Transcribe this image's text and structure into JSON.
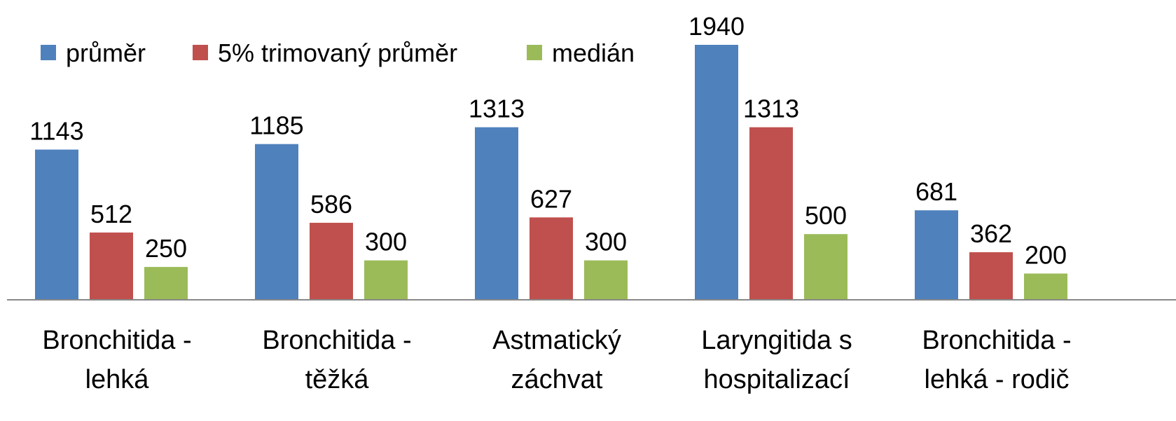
{
  "chart_data": {
    "type": "bar",
    "categories": [
      "Bronchitida - lehká",
      "Bronchitida - těžká",
      "Astmatický záchvat",
      "Laryngitida s hospitalizací",
      "Bronchitida - lehká - rodič"
    ],
    "series": [
      {
        "name": "průměr",
        "color": "#4f81bd",
        "values": [
          1143,
          1185,
          1313,
          1940,
          681
        ]
      },
      {
        "name": "5% trimovaný průměr",
        "color": "#c0504d",
        "values": [
          512,
          586,
          627,
          1313,
          362
        ]
      },
      {
        "name": "medián",
        "color": "#9bbb59",
        "values": [
          250,
          300,
          300,
          500,
          200
        ]
      }
    ],
    "legend": "top-left"
  }
}
